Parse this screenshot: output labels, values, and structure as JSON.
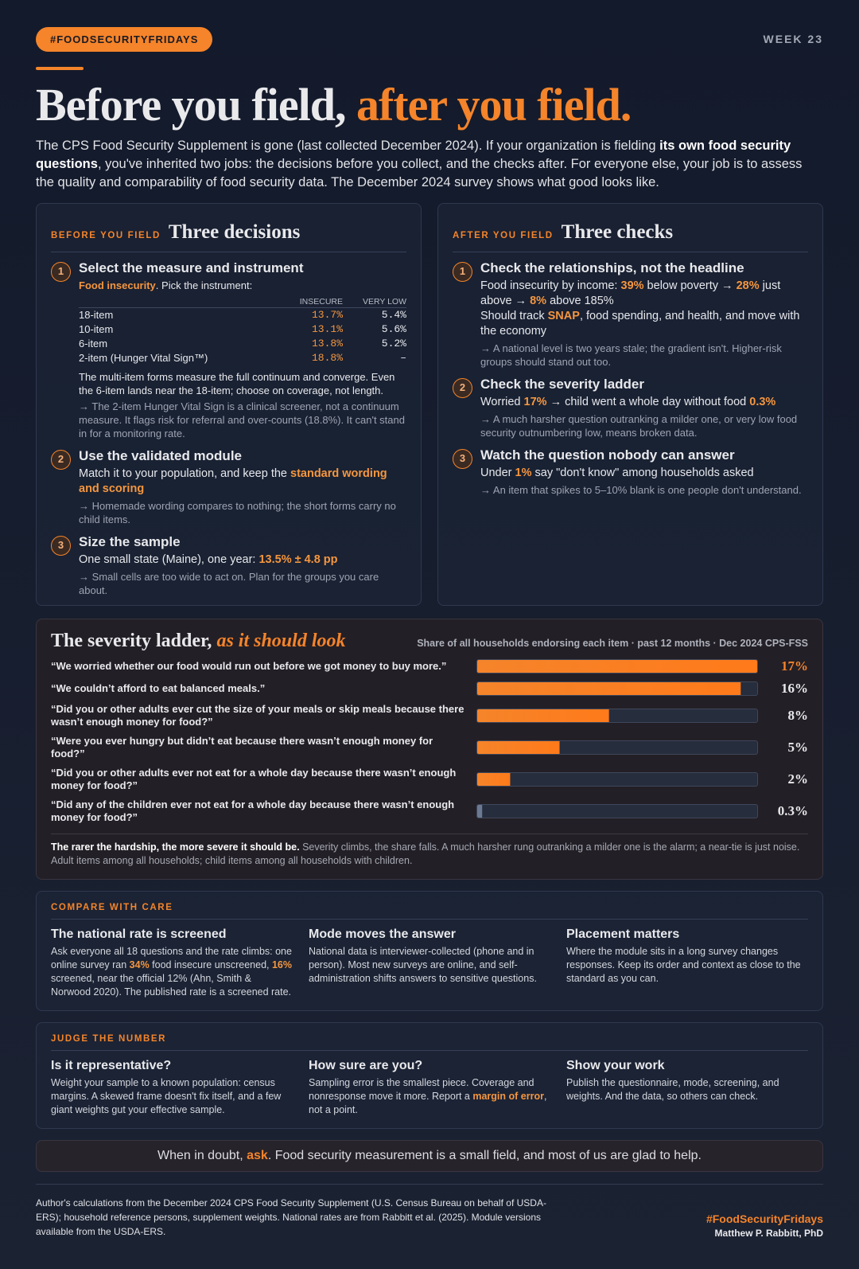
{
  "header": {
    "hashtag": "#FOODSECURITYFRIDAYS",
    "week": "WEEK 23",
    "title_a": "Before you field, ",
    "title_b": "after you field.",
    "intro": [
      "The CPS Food Security Supplement is gone (last collected December 2024). If your organization is fielding ",
      "its own food security questions",
      ", you've inherited two jobs: the decisions before you collect, and the checks after. For everyone else, your job is to assess the quality and comparability of food security data. The December 2024 survey shows what good looks like."
    ]
  },
  "before": {
    "kicker": "BEFORE YOU FIELD",
    "title": "Three decisions",
    "items": [
      {
        "num": "1",
        "heading": "Select the measure and instrument",
        "lead_highlight": "Food insecurity",
        "lead_text": ". Pick the instrument:",
        "table": {
          "headers": [
            "INSECURE",
            "VERY LOW"
          ],
          "rows": [
            [
              "18-item",
              "13.7%",
              "5.4%"
            ],
            [
              "10-item",
              "13.1%",
              "5.6%"
            ],
            [
              "6-item",
              "13.8%",
              "5.2%"
            ],
            [
              "2-item (Hunger Vital Sign™)",
              "18.8%",
              "–"
            ]
          ]
        },
        "text": "The multi-item forms measure the full continuum and converge. Even the 6-item lands near the 18-item; choose on coverage, not length.",
        "note": "→ The 2-item Hunger Vital Sign is a clinical screener, not a continuum measure. It flags risk for referral and over-counts (18.8%). It can't stand in for a monitoring rate."
      },
      {
        "num": "2",
        "heading": "Use the validated module",
        "lines": [
          [
            "Match it to your population, and keep the ",
            "standard wording and scoring"
          ]
        ],
        "note": "→ Homemade wording compares to nothing; the short forms carry no child items."
      },
      {
        "num": "3",
        "heading": "Size the sample",
        "lines": [
          [
            "One small state (Maine), one year: ",
            "13.5% ± 4.8 pp"
          ]
        ],
        "note": "→ Small cells are too wide to act on. Plan for the groups you care about."
      }
    ]
  },
  "after": {
    "kicker": "AFTER YOU FIELD",
    "title": "Three checks",
    "items": [
      {
        "num": "1",
        "heading": "Check the relationships, not the headline",
        "lines": [
          [
            "Food insecurity by income: ",
            "39%",
            " below poverty → ",
            "28%",
            " just above → ",
            "8%",
            " above 185%"
          ],
          [
            "Should track ",
            "SNAP",
            ", food spending, and health, and move with the economy"
          ]
        ],
        "note": "→ A national level is two years stale; the gradient isn't. Higher-risk groups should stand out too."
      },
      {
        "num": "2",
        "heading": "Check the severity ladder",
        "lines": [
          [
            "Worried ",
            "17%",
            " → child went a whole day without food ",
            "0.3%"
          ]
        ],
        "note": "→ A much harsher question outranking a milder one, or very low food security outnumbering low, means broken data."
      },
      {
        "num": "3",
        "heading": "Watch the question nobody can answer",
        "lines": [
          [
            "Under ",
            "1%",
            " say \"don't know\" among households asked"
          ]
        ],
        "note": "→ An item that spikes to 5–10% blank is one people don't understand."
      }
    ]
  },
  "severity_ladder": {
    "type": "bar",
    "title_a": "The severity ladder, ",
    "title_b": "as it should look",
    "subtitle": "Share of all households endorsing each item · past 12 months · Dec 2024 CPS-FSS",
    "categories": [
      "“We worried whether our food would run out before we got money to buy more.”",
      "“We couldn’t afford to eat balanced meals.”",
      "“Did you or other adults ever cut the size of your meals or skip meals because there wasn’t enough money for food?”",
      "“Were you ever hungry but didn’t eat because there wasn’t enough money for food?”",
      "“Did you or other adults ever not eat for a whole day because there wasn’t enough money for food?”",
      "“Did any of the children ever not eat for a whole day because there wasn’t enough money for food?”"
    ],
    "values": [
      17,
      16,
      8,
      5,
      2,
      0.3
    ],
    "value_labels": [
      "17%",
      "16%",
      "8%",
      "5%",
      "2%",
      "0.3%"
    ],
    "color": "#f5842a",
    "footnote": [
      "The rarer the hardship, the more severe it should be.",
      " Severity climbs, the share falls. A much harsher rung outranking a milder one is the alarm; a near-tie is just noise. Adult items among all households; child items among all households with children."
    ]
  },
  "compare": {
    "kicker": "COMPARE WITH CARE",
    "columns": [
      {
        "title": "The national rate is screened",
        "body": [
          "Ask everyone all 18 questions and the rate climbs: one online survey ran ",
          "34%",
          " food insecure unscreened, ",
          "16%",
          " screened, near the official 12% (Ahn, Smith & Norwood 2020). The published rate is a screened rate."
        ]
      },
      {
        "title": "Mode moves the answer",
        "body": [
          "National data is interviewer-collected (phone and in person). Most new surveys are online, and self-administration shifts answers to sensitive questions."
        ]
      },
      {
        "title": "Placement matters",
        "body": [
          "Where the module sits in a long survey changes responses. Keep its order and context as close to the standard as you can."
        ]
      }
    ]
  },
  "judge": {
    "kicker": "JUDGE THE NUMBER",
    "columns": [
      {
        "title": "Is it representative?",
        "body": [
          "Weight your sample to a known population: census margins. A skewed frame doesn't fix itself, and a few giant weights gut your effective sample."
        ]
      },
      {
        "title": "How sure are you?",
        "body": [
          "Sampling error is the smallest piece. Coverage and nonresponse move it more. Report a ",
          "margin of error",
          ", not a point."
        ]
      },
      {
        "title": "Show your work",
        "body": [
          "Publish the questionnaire, mode, screening, and weights. And the data, so others can check."
        ]
      }
    ]
  },
  "callout": [
    "When in doubt, ",
    "ask",
    ". Food security measurement is a small field, and most of us are glad to help."
  ],
  "footer": {
    "source": "Author's calculations from the December 2024 CPS Food Security Supplement (U.S. Census Bureau on behalf of USDA-ERS); household reference persons, supplement weights. National rates are from Rabbitt et al. (2025). Module versions available from the USDA-ERS.",
    "hashtag": "#FoodSecurityFridays",
    "author": "Matthew P. Rabbitt, PhD"
  }
}
